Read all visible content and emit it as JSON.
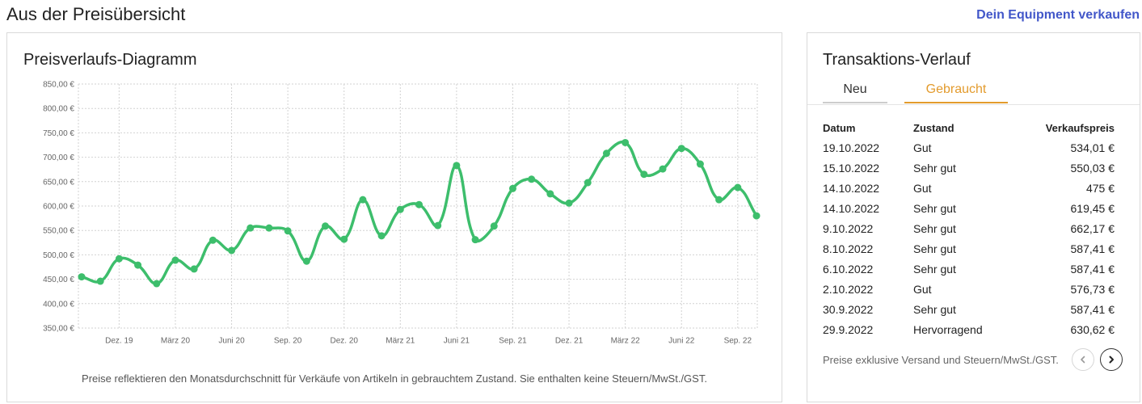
{
  "page": {
    "title": "Aus der Preisübersicht",
    "sell_link": "Dein Equipment verkaufen",
    "link_color": "#4257c9"
  },
  "price_chart": {
    "caption": "Preise reflektieren den Monatsdurchschnitt für Verkäufe von Artikeln in gebrauchtem Zustand. Sie enthalten keine Steuern/MwSt./GST."
  },
  "chart_data": {
    "type": "line",
    "title": "Preisverlaufs-Diagramm",
    "x": [
      "2019-10",
      "2019-11",
      "2019-12",
      "2020-01",
      "2020-02",
      "2020-03",
      "2020-04",
      "2020-05",
      "2020-06",
      "2020-07",
      "2020-08",
      "2020-09",
      "2020-10",
      "2020-11",
      "2020-12",
      "2021-01",
      "2021-02",
      "2021-03",
      "2021-04",
      "2021-05",
      "2021-06",
      "2021-07",
      "2021-08",
      "2021-09",
      "2021-10",
      "2021-11",
      "2021-12",
      "2022-01",
      "2022-02",
      "2022-03",
      "2022-04",
      "2022-05",
      "2022-06",
      "2022-07",
      "2022-08",
      "2022-09",
      "2022-10"
    ],
    "series": [
      {
        "values": [
          455,
          446,
          492,
          479,
          441,
          489,
          471,
          530,
          509,
          555,
          555,
          549,
          487,
          559,
          532,
          613,
          539,
          593,
          603,
          560,
          683,
          531,
          559,
          636,
          655,
          625,
          606,
          648,
          708,
          730,
          665,
          676,
          718,
          686,
          613,
          638,
          580
        ],
        "color": "#3dbe6c"
      }
    ],
    "ylim": [
      350,
      850
    ],
    "yticks": [
      {
        "value": 850,
        "label": "850,00 €"
      },
      {
        "value": 800,
        "label": "800,00 €"
      },
      {
        "value": 750,
        "label": "750,00 €"
      },
      {
        "value": 700,
        "label": "700,00 €"
      },
      {
        "value": 650,
        "label": "650,00 €"
      },
      {
        "value": 600,
        "label": "600,00 €"
      },
      {
        "value": 550,
        "label": "550,00 €"
      },
      {
        "value": 500,
        "label": "500,00 €"
      },
      {
        "value": 450,
        "label": "450,00 €"
      },
      {
        "value": 400,
        "label": "400,00 €"
      },
      {
        "value": 350,
        "label": "350,00 €"
      }
    ],
    "xticks": [
      {
        "x": "2019-12",
        "label": "Dez. 19"
      },
      {
        "x": "2020-03",
        "label": "März 20"
      },
      {
        "x": "2020-06",
        "label": "Juni 20"
      },
      {
        "x": "2020-09",
        "label": "Sep. 20"
      },
      {
        "x": "2020-12",
        "label": "Dez. 20"
      },
      {
        "x": "2021-03",
        "label": "März 21"
      },
      {
        "x": "2021-06",
        "label": "Juni 21"
      },
      {
        "x": "2021-09",
        "label": "Sep. 21"
      },
      {
        "x": "2021-12",
        "label": "Dez. 21"
      },
      {
        "x": "2022-03",
        "label": "März 22"
      },
      {
        "x": "2022-06",
        "label": "Juni 22"
      },
      {
        "x": "2022-09",
        "label": "Sep. 22"
      }
    ],
    "grid": true,
    "legend": "none"
  },
  "transactions": {
    "title": "Transaktions-Verlauf",
    "tabs": [
      {
        "label": "Neu",
        "active": false
      },
      {
        "label": "Gebraucht",
        "active": true
      }
    ],
    "accent_color": "#e39b2d",
    "columns": [
      "Datum",
      "Zustand",
      "Verkaufspreis"
    ],
    "rows": [
      {
        "date": "19.10.2022",
        "condition": "Gut",
        "price": "534,01 €"
      },
      {
        "date": "15.10.2022",
        "condition": "Sehr gut",
        "price": "550,03 €"
      },
      {
        "date": "14.10.2022",
        "condition": "Gut",
        "price": "475 €"
      },
      {
        "date": "14.10.2022",
        "condition": "Sehr gut",
        "price": "619,45 €"
      },
      {
        "date": "9.10.2022",
        "condition": "Sehr gut",
        "price": "662,17 €"
      },
      {
        "date": "8.10.2022",
        "condition": "Sehr gut",
        "price": "587,41 €"
      },
      {
        "date": "6.10.2022",
        "condition": "Sehr gut",
        "price": "587,41 €"
      },
      {
        "date": "2.10.2022",
        "condition": "Gut",
        "price": "576,73 €"
      },
      {
        "date": "30.9.2022",
        "condition": "Sehr gut",
        "price": "587,41 €"
      },
      {
        "date": "29.9.2022",
        "condition": "Hervorragend",
        "price": "630,62 €"
      }
    ],
    "note": "Preise exklusive Versand und Steuern/MwSt./GST.",
    "pagination": {
      "prev_icon": "chevron-left-icon",
      "next_icon": "chevron-right-icon",
      "prev_enabled": false,
      "next_enabled": true
    }
  }
}
